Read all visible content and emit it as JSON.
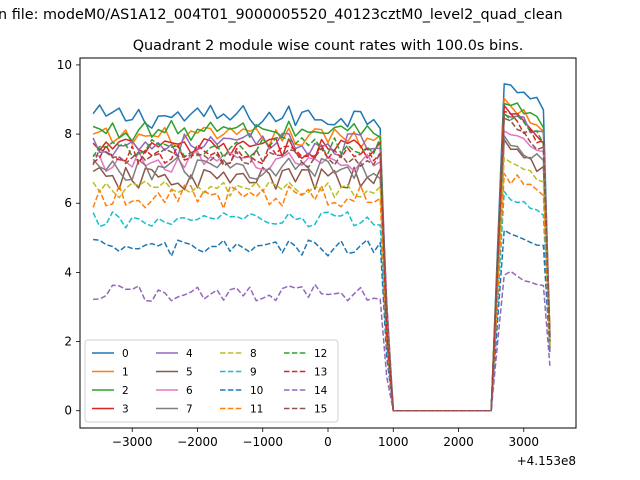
{
  "figure": {
    "suptitle": "n file: modeM0/AS1A12_004T01_9000005520_40123cztM0_level2_quad_clean",
    "title": "Quadrant 2 module wise count rates with 100.0s bins.",
    "offset_label": "+4.153e8"
  },
  "chart_data": {
    "type": "line",
    "title": "Quadrant 2 module wise count rates with 100.0s bins.",
    "xlabel": "",
    "ylabel": "",
    "xlim": [
      -3800,
      3800
    ],
    "ylim": [
      -0.5,
      10.2
    ],
    "x_offset": 415300000,
    "x_ticks": [
      -3000,
      -2000,
      -1000,
      0,
      1000,
      2000,
      3000
    ],
    "x_tick_labels": [
      "−3000",
      "−2000",
      "−1000",
      "0",
      "1000",
      "2000",
      "3000"
    ],
    "y_ticks": [
      0,
      2,
      4,
      6,
      8,
      10
    ],
    "y_tick_labels": [
      "0",
      "2",
      "4",
      "6",
      "8",
      "10"
    ],
    "grid": false,
    "legend_placement": "lower-left",
    "legend_columns": 4,
    "x_start": -3600,
    "x_step": 100,
    "gap": {
      "drop_from": 800,
      "zero_from": 1000,
      "zero_to": 2500,
      "rise_to": 2700,
      "end": 3400
    },
    "series": [
      {
        "name": "0",
        "color": "#1f77b4",
        "dash": "solid",
        "level": 8.5,
        "jitter": 0.35,
        "peak": 9.6,
        "end_value": 2.1
      },
      {
        "name": "1",
        "color": "#ff7f0e",
        "dash": "solid",
        "level": 7.9,
        "jitter": 0.3,
        "peak": 9.0,
        "end_value": 2.3
      },
      {
        "name": "2",
        "color": "#2ca02c",
        "dash": "solid",
        "level": 8.1,
        "jitter": 0.3,
        "peak": 9.0,
        "end_value": 1.8
      },
      {
        "name": "3",
        "color": "#d62728",
        "dash": "solid",
        "level": 7.6,
        "jitter": 0.3,
        "peak": 8.8,
        "end_value": 2.0
      },
      {
        "name": "4",
        "color": "#9467bd",
        "dash": "solid",
        "level": 7.7,
        "jitter": 0.35,
        "peak": 8.7,
        "end_value": 2.2
      },
      {
        "name": "5",
        "color": "#8c564b",
        "dash": "solid",
        "level": 6.7,
        "jitter": 0.35,
        "peak": 7.8,
        "end_value": 2.2
      },
      {
        "name": "6",
        "color": "#e377c2",
        "dash": "solid",
        "level": 7.2,
        "jitter": 0.3,
        "peak": 8.2,
        "end_value": 2.0
      },
      {
        "name": "7",
        "color": "#7f7f7f",
        "dash": "solid",
        "level": 7.0,
        "jitter": 0.35,
        "peak": 7.9,
        "end_value": 2.1
      },
      {
        "name": "8",
        "color": "#bcbd22",
        "dash": "dashed",
        "level": 6.4,
        "jitter": 0.25,
        "peak": 7.4,
        "end_value": 1.9
      },
      {
        "name": "9",
        "color": "#17becf",
        "dash": "dashed",
        "level": 5.5,
        "jitter": 0.25,
        "peak": 6.3,
        "end_value": 1.8
      },
      {
        "name": "10",
        "color": "#1f77b4",
        "dash": "dashed",
        "level": 4.7,
        "jitter": 0.25,
        "peak": 5.3,
        "end_value": 1.7
      },
      {
        "name": "11",
        "color": "#ff7f0e",
        "dash": "dashed",
        "level": 6.2,
        "jitter": 0.35,
        "peak": 6.8,
        "end_value": 1.8
      },
      {
        "name": "12",
        "color": "#2ca02c",
        "dash": "dashed",
        "level": 7.6,
        "jitter": 0.3,
        "peak": 8.7,
        "end_value": 2.0
      },
      {
        "name": "13",
        "color": "#d62728",
        "dash": "dashed",
        "level": 7.4,
        "jitter": 0.3,
        "peak": 8.6,
        "end_value": 2.1
      },
      {
        "name": "14",
        "color": "#9467bd",
        "dash": "dashed",
        "level": 3.4,
        "jitter": 0.25,
        "peak": 4.0,
        "end_value": 1.3
      },
      {
        "name": "15",
        "color": "#8c564b",
        "dash": "dashed",
        "level": 7.3,
        "jitter": 0.3,
        "peak": 8.4,
        "end_value": 2.1
      }
    ]
  }
}
